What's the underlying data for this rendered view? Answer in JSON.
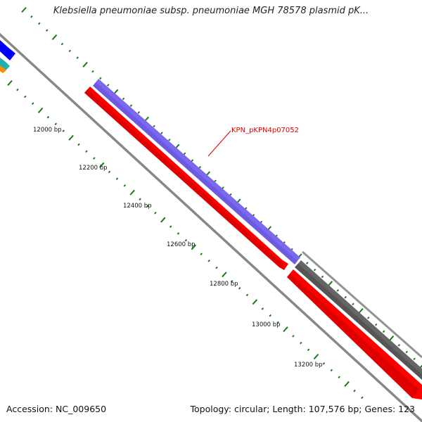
{
  "title": "Klebsiella pneumoniae subsp. pneumoniae MGH 78578 plasmid pK...",
  "accession_text": "Accession: NC_009650",
  "summary_text": "Topology: circular; Length: 107,576 bp; Genes: 123",
  "colors": {
    "forward_gene": "#7b68ee",
    "forward_gene_dark": "#5a4bd1",
    "reverse_gene": "#ff0000",
    "reverse_gene_dark": "#c00000",
    "other_gene": "#666666",
    "backbone": "#888888",
    "tick": "#1a7a1a",
    "blue_gene": "#0000ff",
    "cyan_gene": "#20b2aa",
    "orange_gene": "#ff8c00"
  },
  "position_labels": [
    "12000 bp",
    "12200 bp",
    "12400 bp",
    "12600 bp",
    "12800 bp",
    "13000 bp",
    "13200 bp"
  ],
  "gene_label": "KPN_pKPN4p07052"
}
